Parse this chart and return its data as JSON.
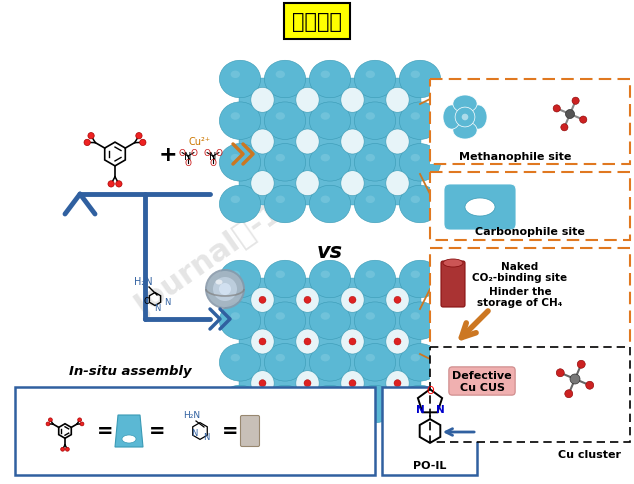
{
  "title": "图文要点",
  "bg_color": "#FFFFFF",
  "title_fontsize": 16,
  "colors": {
    "mof_blue": "#5BB8D4",
    "mof_blue_dark": "#3A9AB5",
    "mof_blue_light": "#85CDE0",
    "arrow_orange": "#CC7722",
    "arrow_blue": "#3060A0",
    "box_orange": "#E07820",
    "text_black": "#111111",
    "red": "#CC2020",
    "yellow_bg": "#FFFF00",
    "gray_sphere": "#A8B8C8",
    "pink_cyl": "#B84040",
    "white": "#FFFFFF"
  },
  "labels": {
    "methanophile": "Methanophile site",
    "carbonophile": "Carbonophile site",
    "naked": "Naked",
    "co2_binding": "CO₂-binding site",
    "hinder": "Hinder the",
    "storage_ch4": "storage of CH₄",
    "defective": "Defective\nCu CUS",
    "po_il": "PO-IL",
    "cu_cluster": "Cu cluster",
    "in_situ": "In-situ assembly",
    "vs": "vs",
    "plus": "+"
  }
}
